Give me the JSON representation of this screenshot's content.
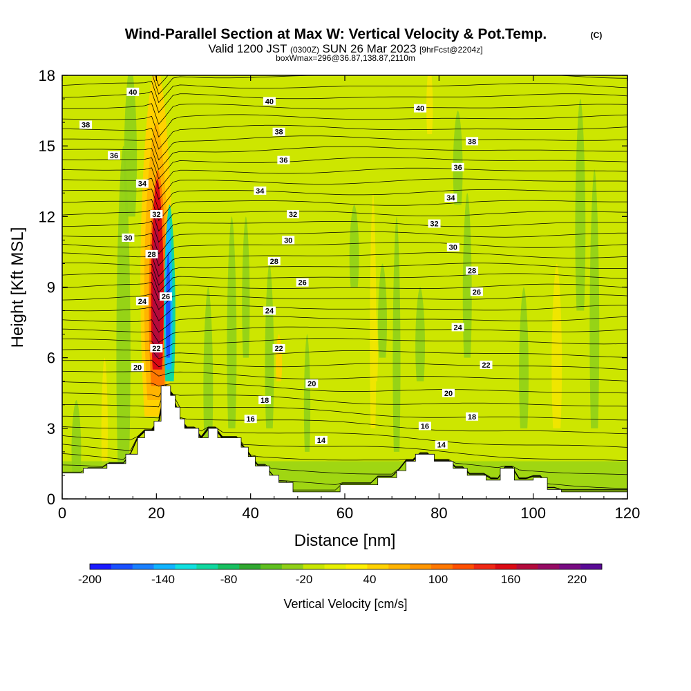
{
  "header": {
    "title": "Wind-Parallel Section at Max W: Vertical Velocity & Pot.Temp.",
    "title_mark": "(C)",
    "valid_prefix": "Valid 1200 JST",
    "valid_utc": "(0300Z)",
    "valid_date": "SUN 26 Mar 2023",
    "valid_fcst": "[9hrFcst@2204z]",
    "box_info": "boxWmax=296@36.87,138.87,2110m"
  },
  "chart_data": {
    "type": "heatmap",
    "xlabel": "Distance [nm]",
    "ylabel": "Height [Kft MSL]",
    "xlim": [
      0,
      120
    ],
    "ylim": [
      0,
      18
    ],
    "xticks": [
      0,
      20,
      40,
      60,
      80,
      100,
      120
    ],
    "yticks": [
      0,
      3,
      6,
      9,
      12,
      15,
      18
    ],
    "colorbar": {
      "label": "Vertical Velocity [cm/s]",
      "ticks": [
        "-200",
        "-140",
        "-80",
        "-20",
        "40",
        "100",
        "160",
        "220"
      ],
      "colors": [
        "#1a1aff",
        "#1a50ff",
        "#1a80ff",
        "#10b4ff",
        "#10e0e0",
        "#10d8a0",
        "#18c060",
        "#30a830",
        "#60c020",
        "#90d018",
        "#c8e600",
        "#e6f000",
        "#fff000",
        "#ffd200",
        "#ffb400",
        "#ff9600",
        "#ff7800",
        "#ff5000",
        "#f02814",
        "#dc0a14",
        "#b40a3c",
        "#960a64",
        "#780a82",
        "#5a0a96"
      ]
    },
    "updraft": {
      "x": [
        17,
        18,
        19,
        20,
        21,
        22
      ],
      "max_w": 296
    },
    "theta_contour_labels": [
      {
        "v": "40",
        "x": 15,
        "y": 17.3
      },
      {
        "v": "40",
        "x": 44,
        "y": 16.9
      },
      {
        "v": "40",
        "x": 76,
        "y": 16.6
      },
      {
        "v": "38",
        "x": 5,
        "y": 15.9
      },
      {
        "v": "38",
        "x": 46,
        "y": 15.6
      },
      {
        "v": "38",
        "x": 87,
        "y": 15.2
      },
      {
        "v": "36",
        "x": 11,
        "y": 14.6
      },
      {
        "v": "36",
        "x": 47,
        "y": 14.4
      },
      {
        "v": "36",
        "x": 84,
        "y": 14.1
      },
      {
        "v": "34",
        "x": 17,
        "y": 13.4
      },
      {
        "v": "34",
        "x": 42,
        "y": 13.1
      },
      {
        "v": "34",
        "x": 82.5,
        "y": 12.8
      },
      {
        "v": "32",
        "x": 20,
        "y": 12.1
      },
      {
        "v": "32",
        "x": 49,
        "y": 12.1
      },
      {
        "v": "32",
        "x": 79,
        "y": 11.7
      },
      {
        "v": "30",
        "x": 14,
        "y": 11.1
      },
      {
        "v": "30",
        "x": 48,
        "y": 11.0
      },
      {
        "v": "30",
        "x": 83,
        "y": 10.7
      },
      {
        "v": "28",
        "x": 19,
        "y": 10.4
      },
      {
        "v": "28",
        "x": 45,
        "y": 10.1
      },
      {
        "v": "28",
        "x": 87,
        "y": 9.7
      },
      {
        "v": "26",
        "x": 22,
        "y": 8.6
      },
      {
        "v": "26",
        "x": 51,
        "y": 9.2
      },
      {
        "v": "26",
        "x": 88,
        "y": 8.8
      },
      {
        "v": "24",
        "x": 17,
        "y": 8.4
      },
      {
        "v": "24",
        "x": 44,
        "y": 8.0
      },
      {
        "v": "24",
        "x": 84,
        "y": 7.3
      },
      {
        "v": "22",
        "x": 20,
        "y": 6.4
      },
      {
        "v": "22",
        "x": 46,
        "y": 6.4
      },
      {
        "v": "22",
        "x": 90,
        "y": 5.7
      },
      {
        "v": "20",
        "x": 16,
        "y": 5.6
      },
      {
        "v": "20",
        "x": 53,
        "y": 4.9
      },
      {
        "v": "20",
        "x": 82,
        "y": 4.5
      },
      {
        "v": "18",
        "x": 43,
        "y": 4.2
      },
      {
        "v": "18",
        "x": 87,
        "y": 3.5
      },
      {
        "v": "16",
        "x": 40,
        "y": 3.4
      },
      {
        "v": "16",
        "x": 77,
        "y": 3.1
      },
      {
        "v": "14",
        "x": 55,
        "y": 2.5
      },
      {
        "v": "14",
        "x": 80.5,
        "y": 2.3
      }
    ],
    "terrain": [
      [
        0,
        1.1
      ],
      [
        4.5,
        1.1
      ],
      [
        4.5,
        1.3
      ],
      [
        9.5,
        1.3
      ],
      [
        9.5,
        1.5
      ],
      [
        13.5,
        1.5
      ],
      [
        13.5,
        1.9
      ],
      [
        16,
        1.9
      ],
      [
        16,
        2.6
      ],
      [
        17.5,
        2.6
      ],
      [
        17.5,
        2.9
      ],
      [
        19.5,
        2.9
      ],
      [
        19.5,
        3.3
      ],
      [
        21,
        3.3
      ],
      [
        21,
        4.8
      ],
      [
        23,
        4.8
      ],
      [
        23,
        4.4
      ],
      [
        24,
        4.4
      ],
      [
        24,
        3.9
      ],
      [
        25,
        3.9
      ],
      [
        25,
        3.4
      ],
      [
        26,
        3.4
      ],
      [
        26,
        3.0
      ],
      [
        29,
        3.0
      ],
      [
        29,
        2.6
      ],
      [
        31,
        2.6
      ],
      [
        31,
        3.0
      ],
      [
        33,
        3.0
      ],
      [
        33,
        2.6
      ],
      [
        38,
        2.6
      ],
      [
        38,
        2.2
      ],
      [
        39.5,
        2.2
      ],
      [
        39.5,
        1.8
      ],
      [
        41,
        1.8
      ],
      [
        41,
        1.4
      ],
      [
        44,
        1.4
      ],
      [
        44,
        1.0
      ],
      [
        46,
        1.0
      ],
      [
        46,
        0.7
      ],
      [
        49,
        0.7
      ],
      [
        49,
        0.3
      ],
      [
        59,
        0.3
      ],
      [
        59,
        0.6
      ],
      [
        67,
        0.6
      ],
      [
        67,
        0.9
      ],
      [
        71,
        0.9
      ],
      [
        71,
        1.2
      ],
      [
        73,
        1.2
      ],
      [
        73,
        1.6
      ],
      [
        75,
        1.6
      ],
      [
        75,
        1.9
      ],
      [
        79,
        1.9
      ],
      [
        79,
        1.6
      ],
      [
        83,
        1.6
      ],
      [
        83,
        1.3
      ],
      [
        86,
        1.3
      ],
      [
        86,
        1.0
      ],
      [
        90,
        1.0
      ],
      [
        90,
        0.8
      ],
      [
        93,
        0.8
      ],
      [
        93,
        1.3
      ],
      [
        96,
        1.3
      ],
      [
        96,
        0.8
      ],
      [
        100,
        0.8
      ],
      [
        100,
        0.9
      ],
      [
        103,
        0.9
      ],
      [
        103,
        0.4
      ],
      [
        106,
        0.4
      ],
      [
        106,
        0.3
      ],
      [
        120,
        0.3
      ]
    ]
  }
}
